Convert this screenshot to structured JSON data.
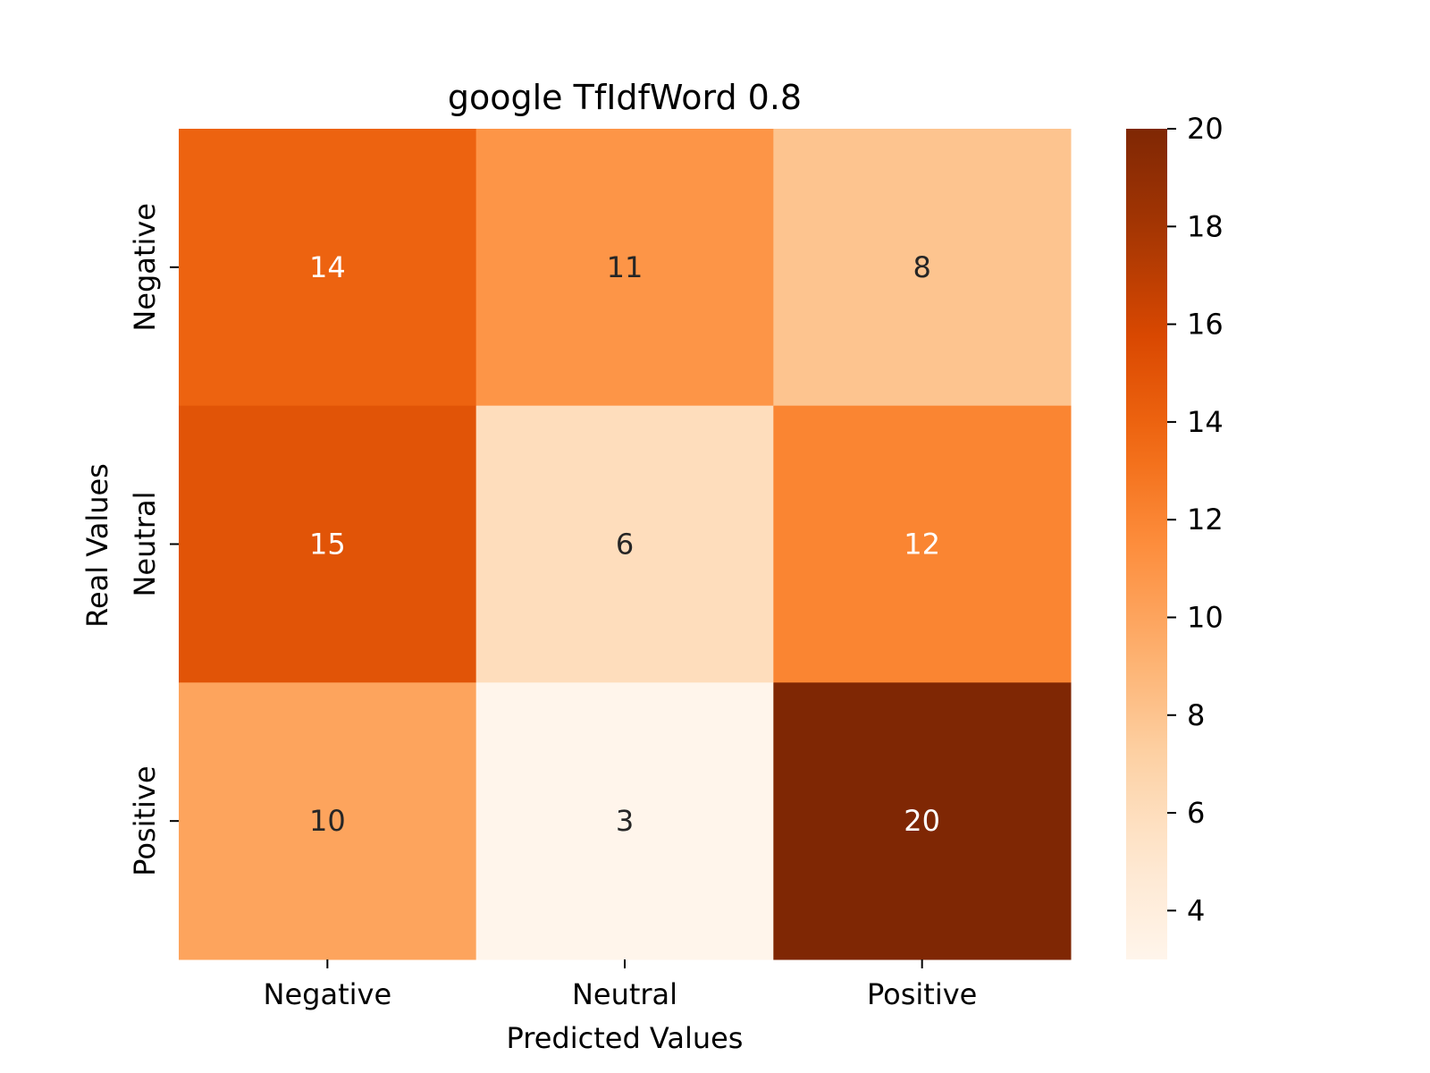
{
  "chart_data": {
    "type": "heatmap",
    "title": "google TfIdfWord 0.8",
    "xlabel": "Predicted Values",
    "ylabel": "Real Values",
    "x_categories": [
      "Negative",
      "Neutral",
      "Positive"
    ],
    "y_categories": [
      "Negative",
      "Neutral",
      "Positive"
    ],
    "values": [
      [
        14,
        11,
        8
      ],
      [
        15,
        6,
        12
      ],
      [
        10,
        3,
        20
      ]
    ],
    "colormap": "Oranges",
    "colorbar": {
      "range": [
        3,
        20
      ],
      "ticks": [
        4,
        6,
        8,
        10,
        12,
        14,
        16,
        18,
        20
      ]
    },
    "grid": false
  }
}
